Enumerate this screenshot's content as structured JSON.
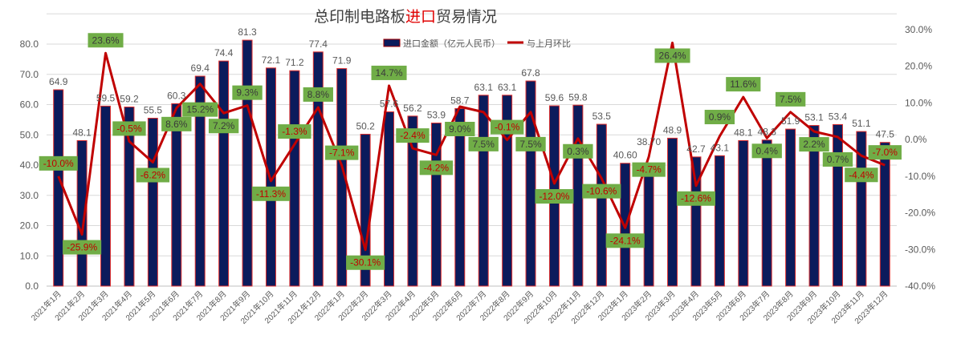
{
  "chart_data": {
    "type": "bar+line",
    "title_parts": [
      "总印制电路板",
      "进口",
      "贸易情况"
    ],
    "categories": [
      "2021年1月",
      "2021年2月",
      "2021年3月",
      "2021年4月",
      "2021年5月",
      "2021年6月",
      "2021年7月",
      "2021年8月",
      "2021年9月",
      "2021年10月",
      "2021年11月",
      "2021年12月",
      "2022年1月",
      "2022年2月",
      "2022年3月",
      "2022年4月",
      "2022年5月",
      "2022年6月",
      "2022年7月",
      "2022年8月",
      "2022年9月",
      "2022年10月",
      "2022年11月",
      "2022年12月",
      "2023年1月",
      "2023年2月",
      "2023年3月",
      "2023年4月",
      "2023年5月",
      "2023年6月",
      "2023年7月",
      "2023年8月",
      "2023年9月",
      "2023年10月",
      "2023年11月",
      "2023年12月"
    ],
    "series": [
      {
        "name": "进口金额（亿元人民币）",
        "type": "bar",
        "axis": "left",
        "color": "#0b1b5c",
        "edge": "#e03030",
        "values": [
          64.9,
          48.1,
          59.5,
          59.2,
          55.5,
          60.3,
          69.4,
          74.4,
          81.3,
          72.1,
          71.2,
          77.4,
          71.9,
          50.2,
          57.6,
          56.2,
          53.9,
          58.7,
          63.1,
          63.1,
          67.8,
          59.6,
          59.8,
          53.5,
          40.6,
          38.7,
          48.9,
          42.7,
          43.1,
          48.1,
          48.3,
          51.9,
          53.1,
          53.4,
          51.1,
          47.5
        ],
        "labels": [
          "64.9",
          "48.1",
          "59.5",
          "59.2",
          "55.5",
          "60.3",
          "69.4",
          "74.4",
          "81.3",
          "72.1",
          "71.2",
          "77.4",
          "71.9",
          "50.2",
          "57.6",
          "56.2",
          "53.9",
          "58.7",
          "63.1",
          "63.1",
          "67.8",
          "59.6",
          "59.8",
          "53.5",
          "40.60",
          "38.70",
          "48.9",
          "42.7",
          "43.1",
          "48.1",
          "48.3",
          "51.9",
          "53.1",
          "53.4",
          "51.1",
          "47.5"
        ]
      },
      {
        "name": "与上月环比",
        "type": "line",
        "axis": "right",
        "color": "#c00000",
        "label_bg": "#70ad47",
        "values": [
          -10.0,
          -25.9,
          23.6,
          -0.5,
          -6.2,
          8.6,
          15.2,
          7.2,
          9.3,
          -11.3,
          -1.3,
          8.8,
          -7.1,
          -30.1,
          14.7,
          -2.4,
          -4.2,
          9.0,
          7.5,
          -0.1,
          7.5,
          -12.0,
          0.3,
          -10.6,
          -24.1,
          -4.7,
          26.4,
          -12.6,
          0.9,
          11.6,
          0.4,
          7.5,
          2.2,
          0.7,
          -4.4,
          -7.0
        ]
      }
    ],
    "ylim_left": [
      0,
      80
    ],
    "yticks_left": [
      "0.0",
      "10.0",
      "20.0",
      "30.0",
      "40.0",
      "50.0",
      "60.0",
      "70.0",
      "80.0"
    ],
    "ylim_right": [
      -40,
      30
    ],
    "yticks_right": [
      "-40.0%",
      "-30.0%",
      "-20.0%",
      "-10.0%",
      "0.0%",
      "10.0%",
      "20.0%",
      "30.0%"
    ],
    "grid": true,
    "legend": "top-center"
  }
}
